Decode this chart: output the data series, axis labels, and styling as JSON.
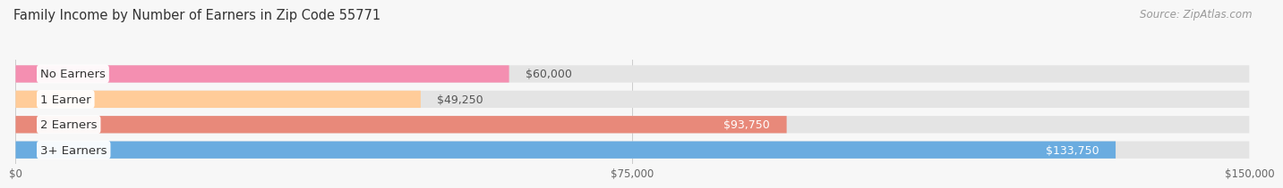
{
  "title": "Family Income by Number of Earners in Zip Code 55771",
  "source": "Source: ZipAtlas.com",
  "categories": [
    "No Earners",
    "1 Earner",
    "2 Earners",
    "3+ Earners"
  ],
  "values": [
    60000,
    49250,
    93750,
    133750
  ],
  "bar_colors": [
    "#f48fb1",
    "#ffcc99",
    "#e8897a",
    "#6aace0"
  ],
  "label_colors": [
    "#555555",
    "#555555",
    "#ffffff",
    "#ffffff"
  ],
  "value_labels": [
    "$60,000",
    "$49,250",
    "$93,750",
    "$133,750"
  ],
  "value_inside": [
    false,
    false,
    true,
    true
  ],
  "xlim": [
    0,
    150000
  ],
  "xticks": [
    0,
    75000,
    150000
  ],
  "xtick_labels": [
    "$0",
    "$75,000",
    "$150,000"
  ],
  "background_color": "#f7f7f7",
  "bar_background_color": "#e4e4e4",
  "title_fontsize": 10.5,
  "label_fontsize": 9.5,
  "value_fontsize": 9,
  "source_fontsize": 8.5
}
